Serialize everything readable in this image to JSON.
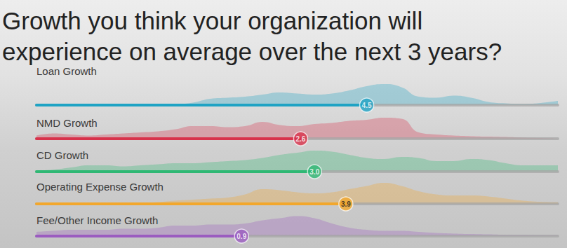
{
  "chart_data": {
    "type": "bar",
    "orientation": "horizontal",
    "title": "Growth you think your organization will\nexperience on average over the next 3 years?",
    "categories": [
      "Loan Growth",
      "NMD Growth",
      "CD Growth",
      "Operating Expense Growth",
      "Fee/Other Income Growth"
    ],
    "values": [
      4.5,
      2.6,
      3.0,
      3.9,
      0.9
    ],
    "value_labels": [
      "4.5",
      "2.6",
      "3.0",
      "3.9",
      "0.9"
    ],
    "colors": [
      "#1fa3c4",
      "#d8324b",
      "#2fb874",
      "#f2a72c",
      "#9b5cc0"
    ],
    "xlim": [
      -5,
      10
    ],
    "tick_labels": false,
    "grid": false,
    "data_labels": true,
    "density_x": [
      -5,
      -4.5,
      -4,
      -3.5,
      -3,
      -2.5,
      -2,
      -1.5,
      -1,
      -0.5,
      0,
      0.5,
      1,
      1.5,
      2,
      2.5,
      3,
      3.5,
      4,
      4.5,
      5,
      5.5,
      6,
      6.5,
      7,
      7.5,
      8,
      8.5,
      9,
      9.5,
      10
    ],
    "densities": [
      [
        0,
        0,
        0,
        0,
        0,
        0.01,
        0.02,
        0.03,
        0.05,
        0.12,
        0.3,
        0.35,
        0.4,
        0.5,
        0.6,
        0.55,
        0.5,
        0.55,
        0.7,
        0.9,
        1.0,
        0.85,
        0.4,
        0.35,
        0.45,
        0.35,
        0.15,
        0.08,
        0.05,
        0.1,
        0.2
      ],
      [
        0.15,
        0.25,
        0.2,
        0.15,
        0.2,
        0.25,
        0.3,
        0.35,
        0.45,
        0.6,
        0.6,
        0.55,
        0.6,
        0.8,
        0.65,
        0.6,
        0.7,
        0.75,
        0.85,
        0.9,
        1.0,
        0.95,
        0.3,
        0.2,
        0.15,
        0.12,
        0.1,
        0.08,
        0.05,
        0.03,
        0
      ],
      [
        0.05,
        0.1,
        0.2,
        0.3,
        0.3,
        0.25,
        0.3,
        0.35,
        0.4,
        0.4,
        0.45,
        0.5,
        0.55,
        0.65,
        0.8,
        0.9,
        1.0,
        0.95,
        0.8,
        0.65,
        0.6,
        0.7,
        0.65,
        0.5,
        0.5,
        0.6,
        0.55,
        0.4,
        0.3,
        0.3,
        0.3
      ],
      [
        0,
        0,
        0,
        0,
        0,
        0,
        0.02,
        0.08,
        0.15,
        0.2,
        0.25,
        0.3,
        0.45,
        0.7,
        0.65,
        0.55,
        0.5,
        0.55,
        0.7,
        0.85,
        1.0,
        0.85,
        0.6,
        0.45,
        0.4,
        0.4,
        0.35,
        0.25,
        0.15,
        0.1,
        0.08
      ],
      [
        0.2,
        0.25,
        0.3,
        0.3,
        0.3,
        0.35,
        0.35,
        0.4,
        0.5,
        0.5,
        0.55,
        0.55,
        0.6,
        0.75,
        0.85,
        0.95,
        0.85,
        0.6,
        0.4,
        0.3,
        0.25,
        0.25,
        0.2,
        0.15,
        0.12,
        0.1,
        0.08,
        0.06,
        0.05,
        0.03,
        0.02
      ]
    ]
  }
}
